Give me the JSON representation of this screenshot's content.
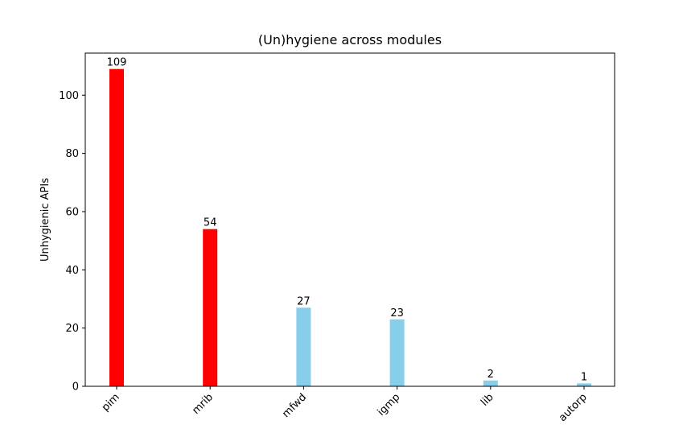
{
  "chart_data": {
    "type": "bar",
    "title": "(Un)hygiene across modules",
    "xlabel": "",
    "ylabel": "Unhygienic APIs",
    "categories": [
      "pim",
      "mrib",
      "mfwd",
      "igmp",
      "lib",
      "autorp"
    ],
    "values": [
      109,
      54,
      27,
      23,
      2,
      1
    ],
    "bar_colors": [
      "#ff0000",
      "#ff0000",
      "#87ceeb",
      "#87ceeb",
      "#87ceeb",
      "#87ceeb"
    ],
    "yticks": [
      0,
      20,
      40,
      60,
      80,
      100
    ],
    "ylim": [
      0,
      114.45
    ],
    "grid": false,
    "legend": "none",
    "data_labels": true
  }
}
